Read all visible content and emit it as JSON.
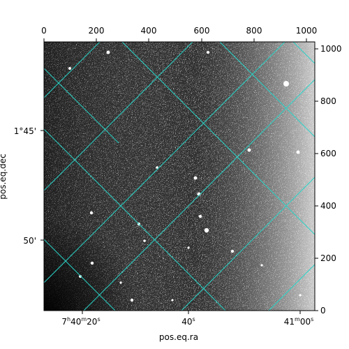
{
  "image": {
    "description_type": "astronomical-image",
    "colormap": "grayscale",
    "grid_color": "#2ad4c8"
  },
  "axes": {
    "bottom_label": "pos.eq.ra",
    "left_label": "pos.eq.dec",
    "top_ticks": [
      "0",
      "200",
      "400",
      "600",
      "800",
      "1000"
    ],
    "right_ticks": [
      "1000",
      "800",
      "600",
      "400",
      "200",
      "0"
    ],
    "bottom_ticks": {
      "t1_main": "7",
      "t1_sup1": "h",
      "t1_mid": "40",
      "t1_sup2": "m",
      "t1_end": "20",
      "t1_sup3": "s",
      "t2_main": "40",
      "t2_sup": "s",
      "t3_main": "41",
      "t3_sup1": "m",
      "t3_mid": "00",
      "t3_sup2": "s"
    },
    "left_ticks": {
      "t1_main": "1°45'",
      "t2_main": "50'"
    }
  }
}
